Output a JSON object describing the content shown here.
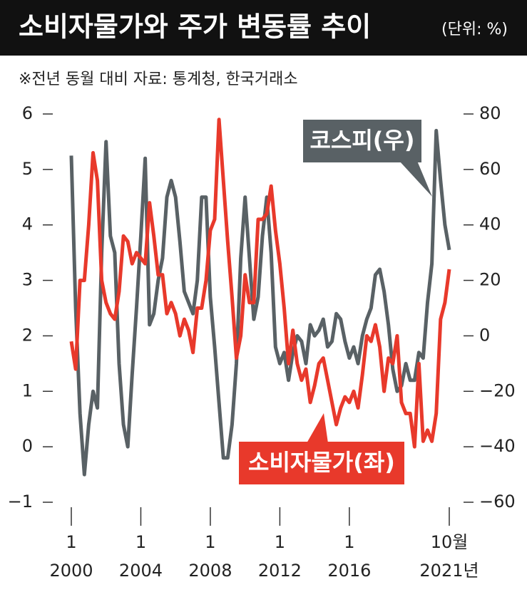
{
  "chart_data": {
    "type": "line",
    "title": "소비자물가와 주가 변동률 추이",
    "unit": "(단위: %)",
    "subtitle": "※전년 동월 대비   자료: 통계청, 한국거래소",
    "x": [
      "2000-01",
      "2000-04",
      "2000-07",
      "2000-10",
      "2001-01",
      "2001-04",
      "2001-07",
      "2001-10",
      "2002-01",
      "2002-04",
      "2002-07",
      "2002-10",
      "2003-01",
      "2003-04",
      "2003-07",
      "2003-10",
      "2004-01",
      "2004-04",
      "2004-07",
      "2004-10",
      "2005-01",
      "2005-04",
      "2005-07",
      "2005-10",
      "2006-01",
      "2006-04",
      "2006-07",
      "2006-10",
      "2007-01",
      "2007-04",
      "2007-07",
      "2007-10",
      "2008-01",
      "2008-04",
      "2008-07",
      "2008-10",
      "2009-01",
      "2009-04",
      "2009-07",
      "2009-10",
      "2010-01",
      "2010-04",
      "2010-07",
      "2010-10",
      "2011-01",
      "2011-04",
      "2011-07",
      "2011-10",
      "2012-01",
      "2012-04",
      "2012-07",
      "2012-10",
      "2013-01",
      "2013-04",
      "2013-07",
      "2013-10",
      "2014-01",
      "2014-04",
      "2014-07",
      "2014-10",
      "2015-01",
      "2015-04",
      "2015-07",
      "2015-10",
      "2016-01",
      "2016-04",
      "2016-07",
      "2016-10",
      "2017-01",
      "2017-04",
      "2017-07",
      "2017-10",
      "2018-01",
      "2018-04",
      "2018-07",
      "2018-10",
      "2019-01",
      "2019-04",
      "2019-07",
      "2019-10",
      "2020-01",
      "2020-04",
      "2020-07",
      "2020-10",
      "2021-01",
      "2021-04",
      "2021-07",
      "2021-10"
    ],
    "series": [
      {
        "name": "코스피(우)",
        "color": "#596165",
        "axis": "y2",
        "values": [
          65,
          10,
          -28,
          -50,
          -32,
          -20,
          -26,
          30,
          70,
          36,
          30,
          -10,
          -32,
          -40,
          -14,
          10,
          36,
          64,
          4,
          8,
          20,
          28,
          50,
          56,
          50,
          34,
          16,
          12,
          8,
          20,
          50,
          50,
          14,
          -4,
          -24,
          -44,
          -44,
          -32,
          -10,
          28,
          50,
          28,
          6,
          14,
          36,
          50,
          30,
          -4,
          -10,
          -6,
          -16,
          -6,
          0,
          -2,
          -10,
          4,
          0,
          2,
          6,
          -4,
          -2,
          8,
          6,
          -2,
          -8,
          -4,
          -10,
          0,
          6,
          10,
          22,
          24,
          16,
          4,
          -12,
          -20,
          -18,
          -10,
          -16,
          -16,
          -6,
          -8,
          12,
          26,
          74,
          56,
          40,
          31
        ]
      },
      {
        "name": "소비자물가(좌)",
        "color": "#e8392b",
        "values": [
          1.9,
          1.4,
          3.0,
          3.0,
          4.0,
          5.3,
          4.8,
          3.0,
          2.6,
          2.4,
          2.3,
          2.8,
          3.8,
          3.7,
          3.3,
          3.5,
          3.4,
          3.3,
          4.4,
          3.8,
          3.1,
          3.1,
          2.4,
          2.6,
          2.4,
          2.0,
          2.3,
          2.1,
          1.7,
          2.5,
          2.5,
          3.0,
          3.9,
          4.1,
          5.9,
          4.8,
          3.7,
          2.7,
          1.6,
          2.0,
          3.1,
          2.6,
          2.6,
          4.1,
          4.1,
          4.2,
          4.7,
          3.9,
          3.3,
          2.5,
          1.5,
          2.1,
          1.5,
          1.2,
          1.4,
          0.8,
          1.1,
          1.5,
          1.6,
          1.2,
          0.8,
          0.4,
          0.7,
          0.9,
          0.8,
          1.0,
          0.7,
          1.3,
          2.0,
          1.9,
          2.2,
          1.8,
          1.0,
          1.6,
          1.5,
          2.0,
          0.8,
          0.6,
          0.6,
          0.0,
          1.5,
          0.1,
          0.3,
          0.1,
          0.6,
          2.3,
          2.6,
          3.2
        ]
      }
    ],
    "xticks": [
      {
        "value": "2000-01",
        "label": "1",
        "year_label": "2000"
      },
      {
        "value": "2004-01",
        "label": "1",
        "year_label": "2004"
      },
      {
        "value": "2008-01",
        "label": "1",
        "year_label": "2008"
      },
      {
        "value": "2012-01",
        "label": "1",
        "year_label": "2012"
      },
      {
        "value": "2016-01",
        "label": "1",
        "year_label": "2016"
      },
      {
        "value": "2021-10",
        "label": "10월",
        "year_label": "2021년"
      }
    ],
    "xlim": [
      "2000-01",
      "2021-10"
    ],
    "ylim": [
      -1,
      6
    ],
    "yticks": [
      {
        "value": -1,
        "label": "−1"
      },
      0,
      1,
      2,
      3,
      4,
      5,
      6
    ],
    "y2lim": [
      -60,
      80
    ],
    "y2ticks": [
      {
        "value": -60,
        "label": "−60"
      },
      {
        "value": -40,
        "label": "−40"
      },
      {
        "value": -20,
        "label": "−20"
      },
      0,
      20,
      40,
      60,
      80
    ]
  }
}
